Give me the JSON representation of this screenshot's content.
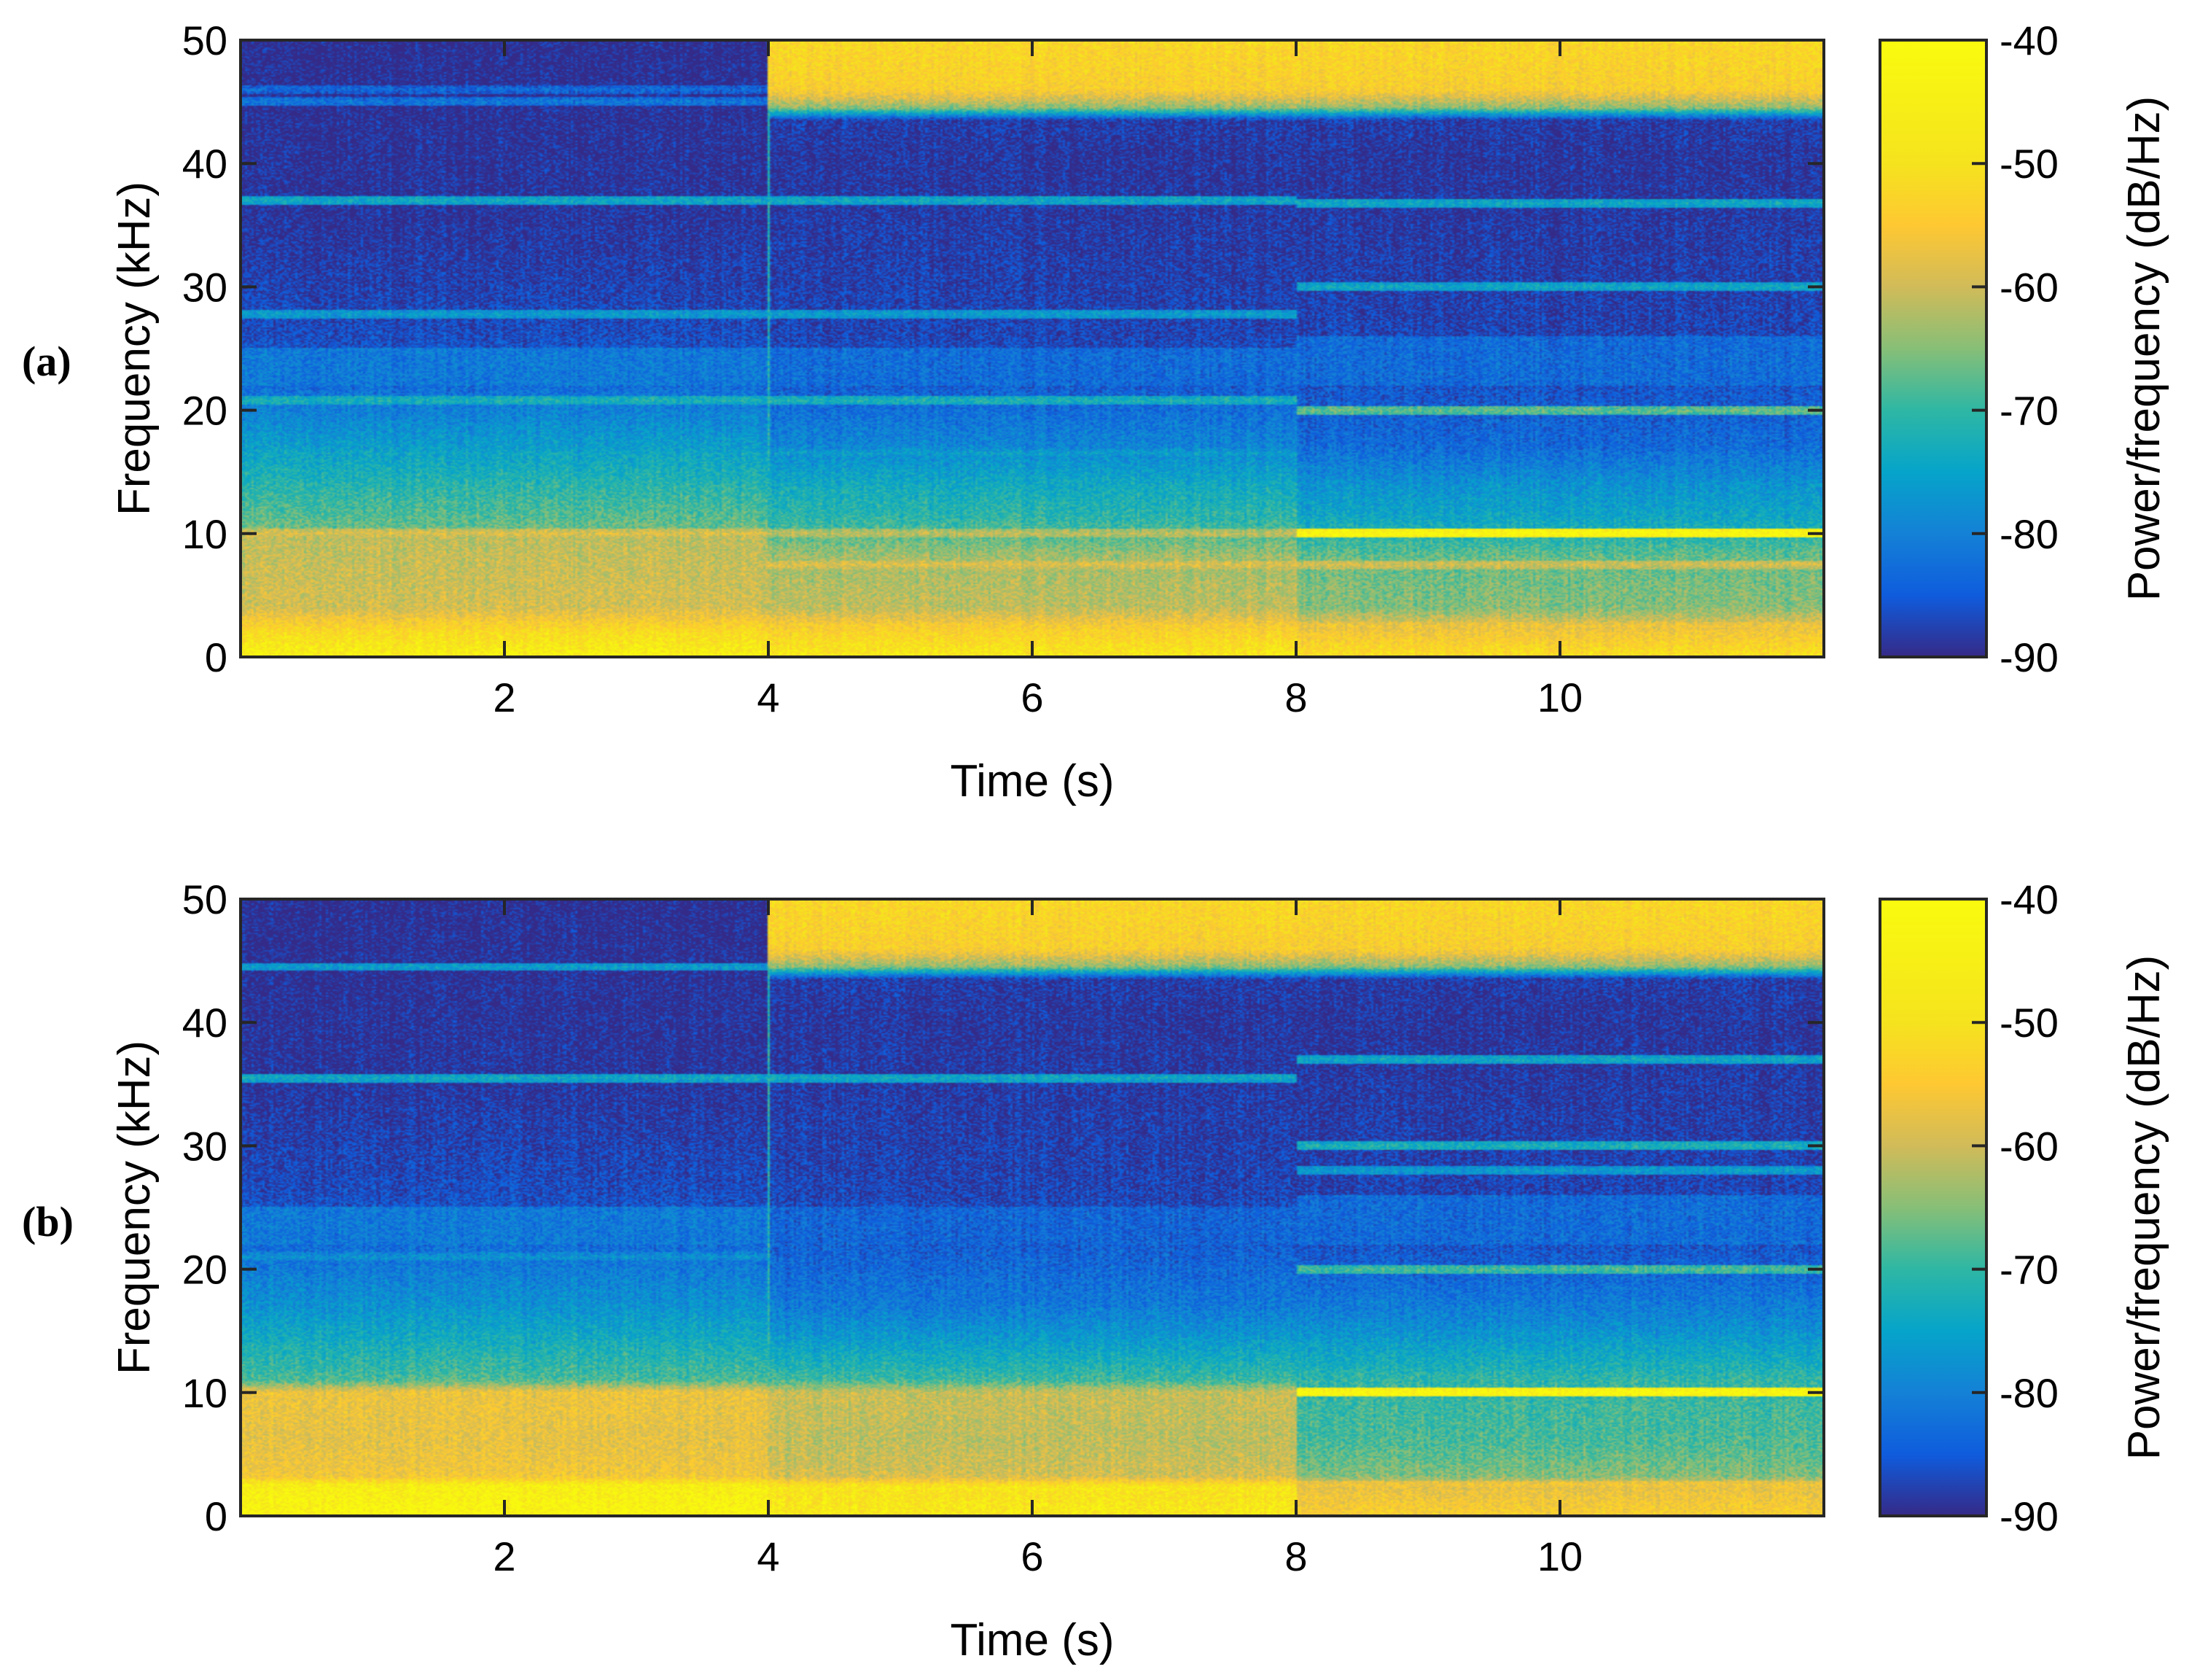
{
  "chart_data": [
    {
      "type": "heatmap",
      "panel_label": "(a)",
      "xlabel": "Time (s)",
      "ylabel": "Frequency (kHz)",
      "xlim": [
        0,
        12
      ],
      "ylim": [
        0,
        50
      ],
      "xticks": [
        2,
        4,
        6,
        8,
        10
      ],
      "xtick_labels": [
        "2",
        "4",
        "6",
        "8",
        "10"
      ],
      "yticks": [
        0,
        10,
        20,
        30,
        40,
        50
      ],
      "ytick_labels": [
        "0",
        "10",
        "20",
        "30",
        "40",
        "50"
      ],
      "colorbar": {
        "label": "Power/frequency (dB/Hz)",
        "range": [
          -90,
          -40
        ],
        "ticks": [
          -90,
          -80,
          -70,
          -60,
          -50,
          -40
        ],
        "tick_labels": [
          "-90",
          "-80",
          "-70",
          "-60",
          "-50",
          "-40"
        ],
        "colormap": "parula"
      },
      "segments": [
        {
          "t_start": 0,
          "t_end": 4,
          "levels": [
            [
              0,
              -42
            ],
            [
              2,
              -47
            ],
            [
              4,
              -56
            ],
            [
              7,
              -57
            ],
            [
              10,
              -58
            ],
            [
              10.5,
              -64
            ],
            [
              14,
              -69
            ],
            [
              17,
              -74
            ],
            [
              22,
              -82
            ],
            [
              26,
              -86
            ],
            [
              35,
              -89
            ],
            [
              50,
              -90
            ]
          ],
          "lines": [
            [
              2.5,
              -50
            ],
            [
              10,
              -55
            ],
            [
              16.5,
              -72
            ],
            [
              20.8,
              -70
            ],
            [
              27.8,
              -74
            ],
            [
              37,
              -72
            ],
            [
              45,
              -80
            ],
            [
              46,
              -82
            ]
          ],
          "bands": [
            [
              22,
              25,
              -80
            ]
          ]
        },
        {
          "t_start": 4,
          "t_end": 8,
          "levels": [
            [
              0,
              -44
            ],
            [
              2,
              -49
            ],
            [
              4,
              -58
            ],
            [
              8,
              -60
            ],
            [
              11,
              -68
            ],
            [
              14,
              -72
            ],
            [
              17,
              -78
            ],
            [
              22,
              -84
            ],
            [
              26,
              -87
            ],
            [
              40,
              -89
            ],
            [
              43.5,
              -88
            ],
            [
              44.5,
              -62
            ],
            [
              46,
              -50
            ],
            [
              50,
              -48
            ]
          ],
          "lines": [
            [
              10,
              -58
            ],
            [
              7.5,
              -55
            ],
            [
              16.5,
              -74
            ],
            [
              20.8,
              -70
            ],
            [
              27.8,
              -74
            ],
            [
              37,
              -72
            ],
            [
              2.5,
              -50
            ]
          ],
          "bands": [
            [
              22,
              25,
              -82
            ]
          ]
        },
        {
          "t_start": 8,
          "t_end": 12,
          "levels": [
            [
              0,
              -46
            ],
            [
              2,
              -52
            ],
            [
              4,
              -62
            ],
            [
              8,
              -64
            ],
            [
              11,
              -72
            ],
            [
              14,
              -76
            ],
            [
              17,
              -82
            ],
            [
              22,
              -85
            ],
            [
              26,
              -87
            ],
            [
              40,
              -89
            ],
            [
              43.5,
              -88
            ],
            [
              44.5,
              -62
            ],
            [
              46,
              -50
            ],
            [
              50,
              -48
            ]
          ],
          "lines": [
            [
              10,
              -40
            ],
            [
              7.5,
              -56
            ],
            [
              20,
              -64
            ],
            [
              30,
              -72
            ],
            [
              36.8,
              -72
            ],
            [
              2.5,
              -52
            ]
          ],
          "bands": [
            [
              22,
              26,
              -82
            ]
          ]
        }
      ],
      "vlines": [
        [
          4,
          0,
          45,
          -70
        ]
      ]
    },
    {
      "type": "heatmap",
      "panel_label": "(b)",
      "xlabel": "Time (s)",
      "ylabel": "Frequency (kHz)",
      "xlim": [
        0,
        12
      ],
      "ylim": [
        0,
        50
      ],
      "xticks": [
        2,
        4,
        6,
        8,
        10
      ],
      "xtick_labels": [
        "2",
        "4",
        "6",
        "8",
        "10"
      ],
      "yticks": [
        0,
        10,
        20,
        30,
        40,
        50
      ],
      "ytick_labels": [
        "0",
        "10",
        "20",
        "30",
        "40",
        "50"
      ],
      "colorbar": {
        "label": "Power/frequency (dB/Hz)",
        "range": [
          -90,
          -40
        ],
        "ticks": [
          -90,
          -80,
          -70,
          -60,
          -50,
          -40
        ],
        "tick_labels": [
          "-90",
          "-80",
          "-70",
          "-60",
          "-50",
          "-40"
        ],
        "colormap": "parula"
      },
      "segments": [
        {
          "t_start": 0,
          "t_end": 4,
          "levels": [
            [
              0,
              -41
            ],
            [
              2.5,
              -43
            ],
            [
              3.2,
              -52
            ],
            [
              6,
              -54
            ],
            [
              10,
              -53
            ],
            [
              11,
              -66
            ],
            [
              14,
              -71
            ],
            [
              17,
              -76
            ],
            [
              22,
              -82
            ],
            [
              26,
              -86
            ],
            [
              35,
              -89
            ],
            [
              50,
              -90
            ]
          ],
          "lines": [
            [
              2.2,
              -42
            ],
            [
              21,
              -76
            ],
            [
              35.5,
              -72
            ],
            [
              44.5,
              -74
            ]
          ],
          "bands": [
            [
              22,
              25,
              -80
            ]
          ]
        },
        {
          "t_start": 4,
          "t_end": 8,
          "levels": [
            [
              0,
              -44
            ],
            [
              2.5,
              -46
            ],
            [
              3.2,
              -56
            ],
            [
              6,
              -58
            ],
            [
              10,
              -57
            ],
            [
              11,
              -67
            ],
            [
              14,
              -74
            ],
            [
              17,
              -80
            ],
            [
              22,
              -84
            ],
            [
              26,
              -87
            ],
            [
              40,
              -89
            ],
            [
              43.5,
              -88
            ],
            [
              44.5,
              -62
            ],
            [
              46,
              -50
            ],
            [
              50,
              -48
            ]
          ],
          "lines": [
            [
              2.2,
              -44
            ],
            [
              35.5,
              -72
            ],
            [
              9.5,
              -60
            ]
          ],
          "bands": [
            [
              22,
              25,
              -83
            ]
          ]
        },
        {
          "t_start": 8,
          "t_end": 12,
          "levels": [
            [
              0,
              -50
            ],
            [
              2.5,
              -54
            ],
            [
              3.2,
              -62
            ],
            [
              6,
              -66
            ],
            [
              9,
              -67
            ],
            [
              11,
              -68
            ],
            [
              13,
              -72
            ],
            [
              16,
              -78
            ],
            [
              19,
              -82
            ],
            [
              22,
              -85
            ],
            [
              26,
              -87
            ],
            [
              40,
              -89
            ],
            [
              43.5,
              -88
            ],
            [
              44.5,
              -62
            ],
            [
              46,
              -50
            ],
            [
              50,
              -48
            ]
          ],
          "lines": [
            [
              10,
              -40
            ],
            [
              20,
              -66
            ],
            [
              28,
              -74
            ],
            [
              30,
              -70
            ],
            [
              37,
              -72
            ],
            [
              2.5,
              -52
            ]
          ],
          "bands": [
            [
              22,
              26,
              -82
            ]
          ]
        }
      ],
      "vlines": [
        [
          4,
          0,
          45,
          -70
        ]
      ]
    }
  ]
}
